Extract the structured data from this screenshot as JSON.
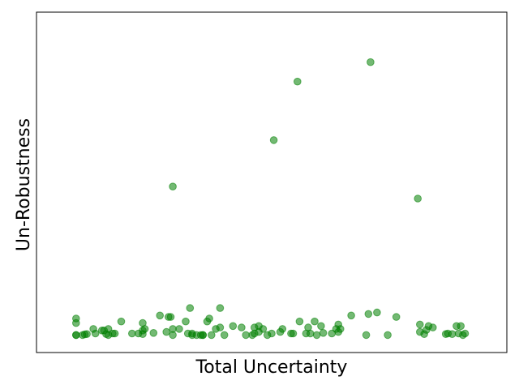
{
  "chart_data": {
    "type": "scatter",
    "title": "",
    "xlabel": "Total Uncertainty",
    "ylabel": "Un-Robustness",
    "xlim": [
      0,
      1
    ],
    "ylim": [
      0,
      1
    ],
    "grid": false,
    "ticks_visible": false,
    "marker_color": "#008000",
    "points": [
      [
        0.045,
        0.045
      ],
      [
        0.045,
        0.1
      ],
      [
        0.045,
        0.085
      ],
      [
        0.06,
        0.045
      ],
      [
        0.065,
        0.047
      ],
      [
        0.085,
        0.065
      ],
      [
        0.09,
        0.05
      ],
      [
        0.105,
        0.06
      ],
      [
        0.11,
        0.06
      ],
      [
        0.115,
        0.048
      ],
      [
        0.12,
        0.045
      ],
      [
        0.12,
        0.065
      ],
      [
        0.13,
        0.05
      ],
      [
        0.15,
        0.09
      ],
      [
        0.175,
        0.05
      ],
      [
        0.19,
        0.05
      ],
      [
        0.2,
        0.06
      ],
      [
        0.2,
        0.048
      ],
      [
        0.2,
        0.085
      ],
      [
        0.205,
        0.065
      ],
      [
        0.225,
        0.052
      ],
      [
        0.24,
        0.11
      ],
      [
        0.255,
        0.055
      ],
      [
        0.26,
        0.105
      ],
      [
        0.265,
        0.105
      ],
      [
        0.27,
        0.065
      ],
      [
        0.27,
        0.045
      ],
      [
        0.285,
        0.065
      ],
      [
        0.3,
        0.09
      ],
      [
        0.305,
        0.05
      ],
      [
        0.31,
        0.135
      ],
      [
        0.315,
        0.045
      ],
      [
        0.325,
        0.045
      ],
      [
        0.335,
        0.045
      ],
      [
        0.34,
        0.045
      ],
      [
        0.35,
        0.09
      ],
      [
        0.355,
        0.1
      ],
      [
        0.36,
        0.045
      ],
      [
        0.37,
        0.065
      ],
      [
        0.38,
        0.07
      ],
      [
        0.38,
        0.135
      ],
      [
        0.39,
        0.045
      ],
      [
        0.41,
        0.075
      ],
      [
        0.43,
        0.07
      ],
      [
        0.44,
        0.045
      ],
      [
        0.455,
        0.045
      ],
      [
        0.46,
        0.07
      ],
      [
        0.47,
        0.055
      ],
      [
        0.47,
        0.075
      ],
      [
        0.48,
        0.065
      ],
      [
        0.5,
        0.05
      ],
      [
        0.52,
        0.055
      ],
      [
        0.525,
        0.065
      ],
      [
        0.55,
        0.05
      ],
      [
        0.545,
        0.05
      ],
      [
        0.565,
        0.09
      ],
      [
        0.58,
        0.05
      ],
      [
        0.585,
        0.07
      ],
      [
        0.59,
        0.05
      ],
      [
        0.6,
        0.09
      ],
      [
        0.605,
        0.045
      ],
      [
        0.615,
        0.075
      ],
      [
        0.64,
        0.05
      ],
      [
        0.65,
        0.065
      ],
      [
        0.655,
        0.08
      ],
      [
        0.655,
        0.055
      ],
      [
        0.66,
        0.065
      ],
      [
        0.685,
        0.11
      ],
      [
        0.72,
        0.045
      ],
      [
        0.725,
        0.115
      ],
      [
        0.745,
        0.12
      ],
      [
        0.77,
        0.045
      ],
      [
        0.79,
        0.105
      ],
      [
        0.845,
        0.08
      ],
      [
        0.845,
        0.055
      ],
      [
        0.855,
        0.048
      ],
      [
        0.86,
        0.062
      ],
      [
        0.865,
        0.075
      ],
      [
        0.875,
        0.07
      ],
      [
        0.905,
        0.048
      ],
      [
        0.91,
        0.05
      ],
      [
        0.92,
        0.048
      ],
      [
        0.93,
        0.075
      ],
      [
        0.935,
        0.05
      ],
      [
        0.94,
        0.075
      ],
      [
        0.945,
        0.045
      ],
      [
        0.27,
        0.54
      ],
      [
        0.505,
        0.695
      ],
      [
        0.56,
        0.89
      ],
      [
        0.73,
        0.955
      ],
      [
        0.84,
        0.5
      ],
      [
        0.045,
        0.045
      ],
      [
        0.07,
        0.048
      ],
      [
        0.135,
        0.05
      ],
      [
        0.315,
        0.05
      ],
      [
        0.34,
        0.045
      ],
      [
        0.46,
        0.05
      ],
      [
        0.49,
        0.045
      ],
      [
        0.62,
        0.052
      ],
      [
        0.95,
        0.05
      ]
    ]
  }
}
